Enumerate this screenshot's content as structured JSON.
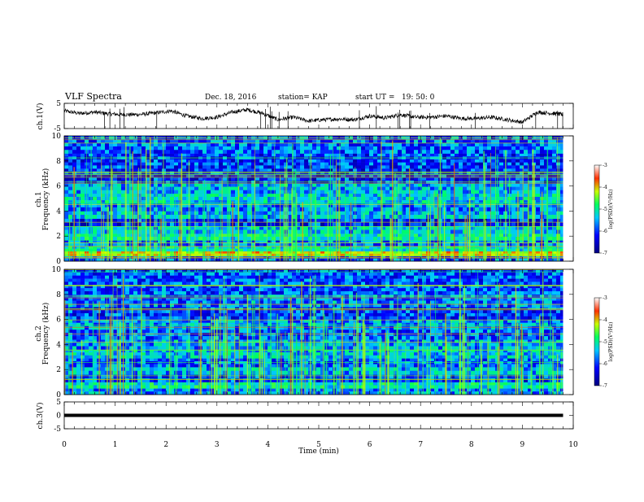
{
  "header": {
    "title": "VLF Spectra",
    "date": "Dec. 18, 2016",
    "station": "station= KAP",
    "start": "start UT =   19: 50: 0"
  },
  "chart_data": [
    {
      "type": "line",
      "panel": "ch1-waveform",
      "ylabel": "ch.1(V)",
      "ylim": [
        -5,
        5
      ],
      "yticks": [
        "5",
        "-5"
      ],
      "xlim": [
        0,
        10
      ],
      "x_end": 9.8,
      "series": [
        {
          "x": [
            0,
            0.3,
            0.6,
            0.9,
            1.2,
            1.5,
            1.8,
            2.1,
            2.4,
            2.7,
            3.0,
            3.3,
            3.6,
            3.9,
            4.2,
            4.5,
            4.8,
            5.1,
            5.4,
            5.7,
            6.0,
            6.3,
            6.6,
            6.9,
            7.2,
            7.5,
            7.8,
            8.1,
            8.4,
            8.7,
            9.0,
            9.3,
            9.6,
            9.8
          ],
          "y": [
            2,
            1,
            1.5,
            0.8,
            0.5,
            0.6,
            1.2,
            2,
            0,
            -1,
            -0.5,
            1.5,
            2.5,
            1,
            -1.5,
            -0.5,
            -2,
            -1.5,
            -1.2,
            -1.5,
            0,
            -0.8,
            0.5,
            -0.5,
            -0.5,
            0,
            -1,
            -1,
            -0.5,
            -1.5,
            -2.5,
            1.5,
            1,
            0.5
          ]
        }
      ]
    },
    {
      "type": "heatmap",
      "panel": "ch1-spectrogram",
      "ylabel_line1": "ch.1",
      "ylabel_line2": "Frequency (kHz)",
      "ylim": [
        0,
        10
      ],
      "yticks": [
        "0",
        "2",
        "4",
        "6",
        "8",
        "10"
      ],
      "xlim": [
        0,
        10
      ],
      "x_end": 9.8,
      "colorbar": {
        "label": "log(PSD)(V²/Hz)",
        "range": [
          -7,
          -3
        ],
        "ticks": [
          "-3",
          "-4",
          "-5",
          "-6",
          "-7"
        ]
      },
      "bands": [
        {
          "f_lo": 0,
          "f_hi": 0.4,
          "level": 0.28
        },
        {
          "f_lo": 0.4,
          "f_hi": 0.8,
          "level": 0.82
        },
        {
          "f_lo": 0.8,
          "f_hi": 1.2,
          "level": 0.5
        },
        {
          "f_lo": 1.2,
          "f_hi": 1.7,
          "level": 0.32
        },
        {
          "f_lo": 1.7,
          "f_hi": 2.2,
          "level": 0.5
        },
        {
          "f_lo": 2.2,
          "f_hi": 2.8,
          "level": 0.42
        },
        {
          "f_lo": 2.8,
          "f_hi": 3.4,
          "level": 0.22
        },
        {
          "f_lo": 3.4,
          "f_hi": 4.0,
          "level": 0.4
        },
        {
          "f_lo": 4.0,
          "f_hi": 4.6,
          "level": 0.34
        },
        {
          "f_lo": 4.6,
          "f_hi": 5.4,
          "level": 0.45
        },
        {
          "f_lo": 5.4,
          "f_hi": 6.2,
          "level": 0.4
        },
        {
          "f_lo": 6.2,
          "f_hi": 7.4,
          "level": 0.22
        },
        {
          "f_lo": 7.4,
          "f_hi": 8.6,
          "level": 0.25
        },
        {
          "f_lo": 8.6,
          "f_hi": 10,
          "level": 0.3
        }
      ]
    },
    {
      "type": "heatmap",
      "panel": "ch2-spectrogram",
      "ylabel_line1": "ch.2",
      "ylabel_line2": "Frequency (kHz)",
      "ylim": [
        0,
        10
      ],
      "yticks": [
        "0",
        "2",
        "4",
        "6",
        "8",
        "10"
      ],
      "xlim": [
        0,
        10
      ],
      "x_end": 9.8,
      "colorbar": {
        "label": "log(PSD)(V²/Hz)",
        "range": [
          -7,
          -3
        ],
        "ticks": [
          "-3",
          "-4",
          "-5",
          "-6",
          "-7"
        ]
      },
      "bands": [
        {
          "f_lo": 0,
          "f_hi": 0.5,
          "level": 0.35
        },
        {
          "f_lo": 0.5,
          "f_hi": 1.0,
          "level": 0.5
        },
        {
          "f_lo": 1.0,
          "f_hi": 1.6,
          "level": 0.25
        },
        {
          "f_lo": 1.6,
          "f_hi": 2.2,
          "level": 0.4
        },
        {
          "f_lo": 2.2,
          "f_hi": 2.9,
          "level": 0.3
        },
        {
          "f_lo": 2.9,
          "f_hi": 3.6,
          "level": 0.42
        },
        {
          "f_lo": 3.6,
          "f_hi": 4.4,
          "level": 0.38
        },
        {
          "f_lo": 4.4,
          "f_hi": 5.2,
          "level": 0.3
        },
        {
          "f_lo": 5.2,
          "f_hi": 6.0,
          "level": 0.36
        },
        {
          "f_lo": 6.0,
          "f_hi": 7.0,
          "level": 0.25
        },
        {
          "f_lo": 7.0,
          "f_hi": 8.0,
          "level": 0.32
        },
        {
          "f_lo": 8.0,
          "f_hi": 10,
          "level": 0.28
        }
      ]
    },
    {
      "type": "line",
      "panel": "ch3-waveform",
      "ylabel": "ch.3(V)",
      "ylim": [
        -5,
        5
      ],
      "yticks": [
        "5",
        "0",
        "-5"
      ],
      "xlim": [
        0,
        10
      ],
      "x_end": 9.8,
      "series": [
        {
          "x": [
            0,
            9.8
          ],
          "y": [
            0,
            0
          ]
        }
      ]
    }
  ],
  "xaxis": {
    "label": "Time (min)",
    "ticks": [
      "0",
      "1",
      "2",
      "3",
      "4",
      "5",
      "6",
      "7",
      "8",
      "9",
      "10"
    ]
  }
}
